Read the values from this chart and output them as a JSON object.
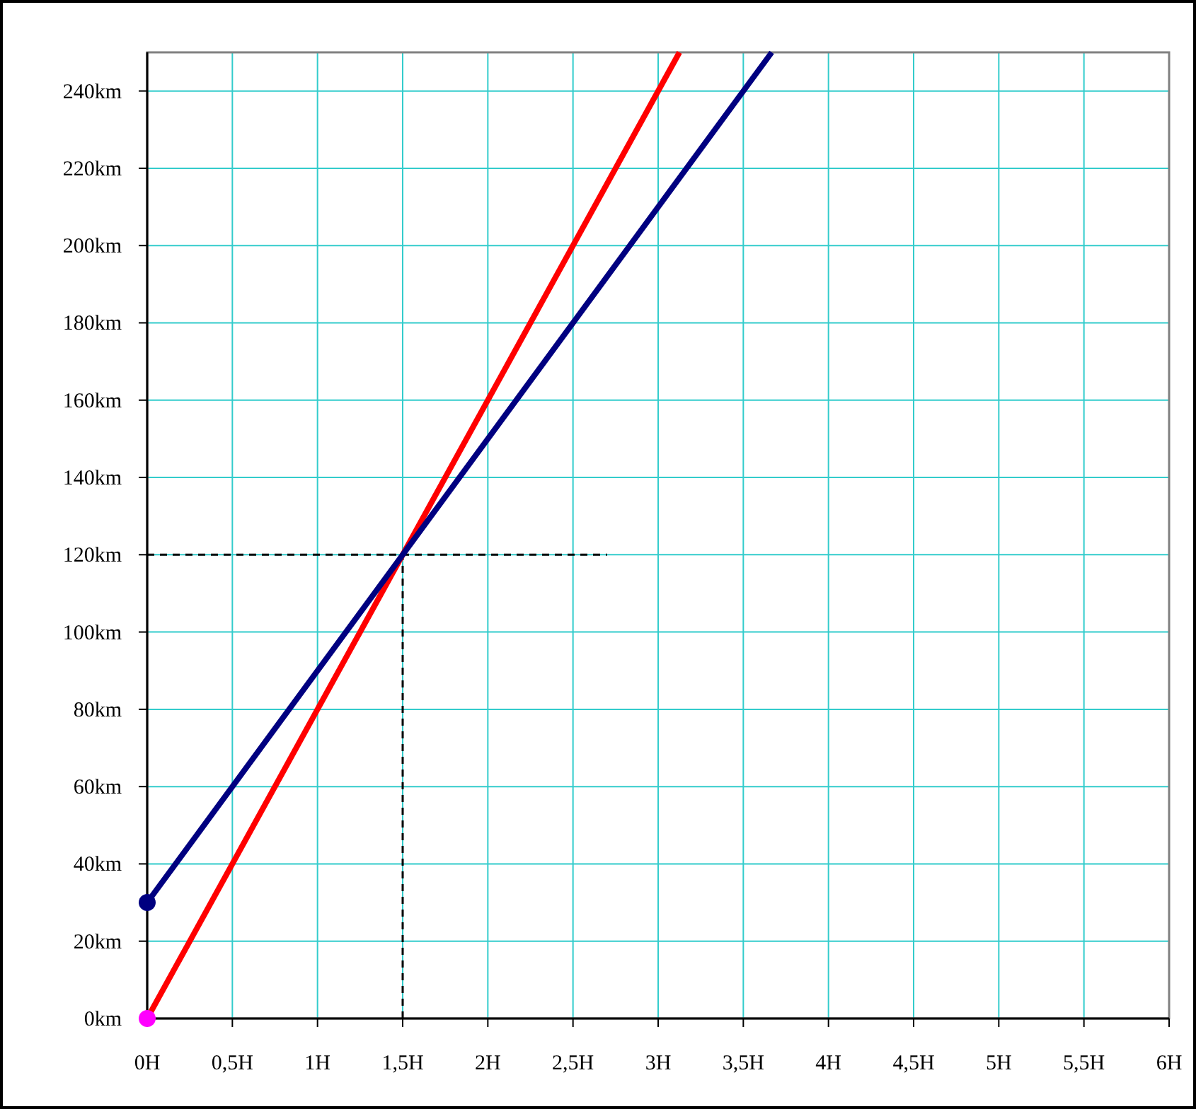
{
  "chart_data": {
    "type": "line",
    "xlim": [
      0,
      6
    ],
    "ylim": [
      0,
      250
    ],
    "xticks": [
      {
        "value": 0,
        "label": "0H"
      },
      {
        "value": 0.5,
        "label": "0,5H"
      },
      {
        "value": 1,
        "label": "1H"
      },
      {
        "value": 1.5,
        "label": "1,5H"
      },
      {
        "value": 2,
        "label": "2H"
      },
      {
        "value": 2.5,
        "label": "2,5H"
      },
      {
        "value": 3,
        "label": "3H"
      },
      {
        "value": 3.5,
        "label": "3,5H"
      },
      {
        "value": 4,
        "label": "4H"
      },
      {
        "value": 4.5,
        "label": "4,5H"
      },
      {
        "value": 5,
        "label": "5H"
      },
      {
        "value": 5.5,
        "label": "5,5H"
      },
      {
        "value": 6,
        "label": "6H"
      }
    ],
    "yticks": [
      {
        "value": 0,
        "label": "0km"
      },
      {
        "value": 20,
        "label": "20km"
      },
      {
        "value": 40,
        "label": "40km"
      },
      {
        "value": 60,
        "label": "60km"
      },
      {
        "value": 80,
        "label": "80km"
      },
      {
        "value": 100,
        "label": "100km"
      },
      {
        "value": 120,
        "label": "120km"
      },
      {
        "value": 140,
        "label": "140km"
      },
      {
        "value": 160,
        "label": "160km"
      },
      {
        "value": 180,
        "label": "180km"
      },
      {
        "value": 200,
        "label": "200km"
      },
      {
        "value": 220,
        "label": "220km"
      },
      {
        "value": 240,
        "label": "240km"
      }
    ],
    "grid": true,
    "series": [
      {
        "color": "#000000",
        "line_style": "dashed",
        "x": [
          0,
          2.7
        ],
        "values": [
          120,
          120
        ]
      },
      {
        "color": "#000000",
        "line_style": "dashed",
        "x": [
          1.5,
          1.5
        ],
        "values": [
          0,
          120
        ]
      },
      {
        "color": "#ff0000",
        "line_style": "solid",
        "x": [
          0,
          3.125
        ],
        "values": [
          0,
          250
        ]
      },
      {
        "color": "#000080",
        "line_style": "solid",
        "x": [
          0,
          3.667
        ],
        "values": [
          30,
          250
        ]
      },
      {
        "type": "scatter",
        "color": "#ff00ff",
        "marker": "circle",
        "x": [
          0
        ],
        "values": [
          0
        ]
      },
      {
        "type": "scatter",
        "color": "#000080",
        "marker": "circle",
        "x": [
          0
        ],
        "values": [
          30
        ]
      }
    ]
  }
}
